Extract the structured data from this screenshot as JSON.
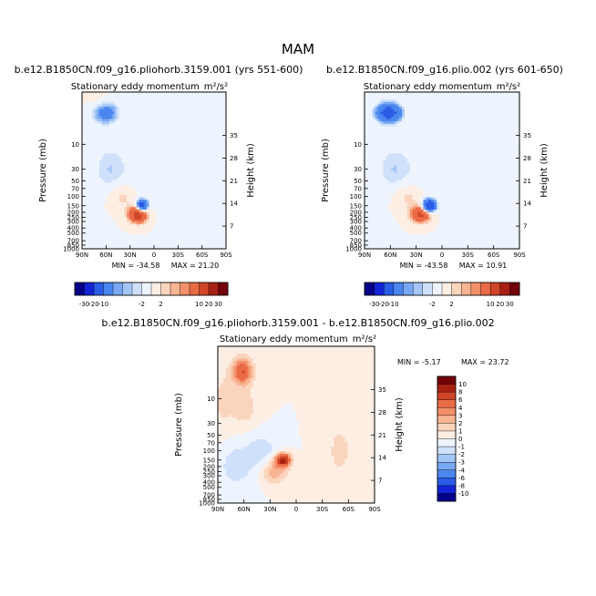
{
  "figure": {
    "season_title": "MAM"
  },
  "colors": {
    "palette_top": [
      "#05008a",
      "#1324d6",
      "#2a5ce6",
      "#4a86ee",
      "#78a8f3",
      "#a4c6f7",
      "#cfe1fa",
      "#eef4fd",
      "#fdeee4",
      "#fbd4bd",
      "#f8b592",
      "#f3906a",
      "#e96a45",
      "#d04427",
      "#a82012",
      "#74000a"
    ],
    "palette_diff": [
      "#05008a",
      "#1324d6",
      "#2a5ce6",
      "#4a86ee",
      "#78a8f3",
      "#a4c6f7",
      "#cfe1fa",
      "#eef4fd",
      "#fdeee4",
      "#fbd4bd",
      "#f8b592",
      "#f3906a",
      "#e96a45",
      "#d04427",
      "#a82012",
      "#74000a"
    ]
  },
  "chart_data": [
    {
      "type": "contour",
      "title": "b.e12.B1850CN.f09_g16.pliohorb.3159.001 (yrs 551-600)",
      "subtitle": "Stationary eddy momentum",
      "units": "m²/s²",
      "xlabel": "",
      "ylabel": "Pressure (mb)",
      "y2label": "Height (km)",
      "x_ticks": [
        "90N",
        "60N",
        "30N",
        "0",
        "30S",
        "60S",
        "90S"
      ],
      "y_ticks": [
        "10",
        "30",
        "50",
        "70",
        "100",
        "150",
        "200",
        "250",
        "300",
        "400",
        "500",
        "700",
        "850",
        "1000"
      ],
      "y2_ticks": [
        "35",
        "28",
        "21",
        "14",
        "7"
      ],
      "min_label": "MIN = -34.58",
      "max_label": "MAX = 21.20",
      "min": -34.58,
      "max": 21.2,
      "blobs": [
        {
          "lat": 20,
          "p": 220,
          "amp": 14,
          "sx": 8,
          "sp": 0.25
        },
        {
          "lat": 15,
          "p": 150,
          "amp": -16,
          "sx": 5,
          "sp": 0.18
        },
        {
          "lat": 62,
          "p": 2.5,
          "amp": -8,
          "sx": 12,
          "sp": 0.35
        },
        {
          "lat": 55,
          "p": 30,
          "amp": -3,
          "sx": 16,
          "sp": 0.8
        },
        {
          "lat": 40,
          "p": 100,
          "amp": 3,
          "sx": 12,
          "sp": 0.4
        },
        {
          "lat": 70,
          "p": 2,
          "amp": 2,
          "sx": 10,
          "sp": 0.5
        },
        {
          "lat": 5,
          "p": 40,
          "amp": -1.5,
          "sx": 20,
          "sp": 0.9
        }
      ]
    },
    {
      "type": "contour",
      "title": "b.e12.B1850CN.f09_g16.plio.002 (yrs 601-650)",
      "subtitle": "Stationary eddy momentum",
      "units": "m²/s²",
      "xlabel": "",
      "ylabel": "Pressure (mb)",
      "y2label": "Height (km)",
      "x_ticks": [
        "90N",
        "60N",
        "30N",
        "0",
        "30S",
        "60S",
        "90S"
      ],
      "y_ticks": [
        "10",
        "30",
        "50",
        "70",
        "100",
        "150",
        "200",
        "250",
        "300",
        "400",
        "500",
        "700",
        "850",
        "1000"
      ],
      "y2_ticks": [
        "35",
        "28",
        "21",
        "14",
        "7"
      ],
      "min_label": "MIN = -43.58",
      "max_label": "MAX = 10.91",
      "min": -43.58,
      "max": 10.91,
      "blobs": [
        {
          "lat": 25,
          "p": 220,
          "amp": 11,
          "sx": 8,
          "sp": 0.25
        },
        {
          "lat": 15,
          "p": 150,
          "amp": -20,
          "sx": 5,
          "sp": 0.18
        },
        {
          "lat": 62,
          "p": 2.5,
          "amp": -14,
          "sx": 10,
          "sp": 0.3
        },
        {
          "lat": 55,
          "p": 30,
          "amp": -3,
          "sx": 16,
          "sp": 0.8
        },
        {
          "lat": 40,
          "p": 100,
          "amp": 3,
          "sx": 12,
          "sp": 0.4
        },
        {
          "lat": 5,
          "p": 40,
          "amp": -1.5,
          "sx": 20,
          "sp": 0.9
        }
      ]
    },
    {
      "type": "contour",
      "title": "b.e12.B1850CN.f09_g16.pliohorb.3159.001 - b.e12.B1850CN.f09_g16.plio.002",
      "subtitle": "Stationary eddy momentum",
      "units": "m²/s²",
      "xlabel": "",
      "ylabel": "Pressure (mb)",
      "y2label": "Height (km)",
      "x_ticks": [
        "90N",
        "60N",
        "30N",
        "0",
        "30S",
        "60S",
        "90S"
      ],
      "y_ticks": [
        "10",
        "30",
        "50",
        "70",
        "100",
        "150",
        "200",
        "250",
        "300",
        "400",
        "500",
        "700",
        "850",
        "1000"
      ],
      "y2_ticks": [
        "35",
        "28",
        "21",
        "14",
        "7"
      ],
      "min_label": "MIN = -5.17",
      "max_label": "MAX = 23.72",
      "min": -5.17,
      "max": 23.72,
      "blobs": [
        {
          "lat": 15,
          "p": 150,
          "amp": 9,
          "sx": 6,
          "sp": 0.2
        },
        {
          "lat": 25,
          "p": 250,
          "amp": 3,
          "sx": 10,
          "sp": 0.35
        },
        {
          "lat": 62,
          "p": 3,
          "amp": 6,
          "sx": 8,
          "sp": 0.4
        },
        {
          "lat": 60,
          "p": 15,
          "amp": 1.5,
          "sx": 12,
          "sp": 0.7
        },
        {
          "lat": 85,
          "p": 10,
          "amp": 1.2,
          "sx": 8,
          "sp": 1.0
        },
        {
          "lat": 40,
          "p": 100,
          "amp": -1.5,
          "sx": 14,
          "sp": 0.6
        },
        {
          "lat": 70,
          "p": 200,
          "amp": -1.5,
          "sx": 14,
          "sp": 0.7
        },
        {
          "lat": -50,
          "p": 100,
          "amp": 1.2,
          "sx": 14,
          "sp": 1.2
        }
      ]
    }
  ],
  "colorbar_top": {
    "labels": [
      "-30",
      "-20",
      "-10",
      "-2",
      "2",
      "10",
      "20",
      "30"
    ]
  },
  "colorbar_diff": {
    "labels": [
      "10",
      "8",
      "6",
      "4",
      "3",
      "2",
      "1",
      "0",
      "-1",
      "-2",
      "-3",
      "-4",
      "-6",
      "-8",
      "-10"
    ]
  }
}
